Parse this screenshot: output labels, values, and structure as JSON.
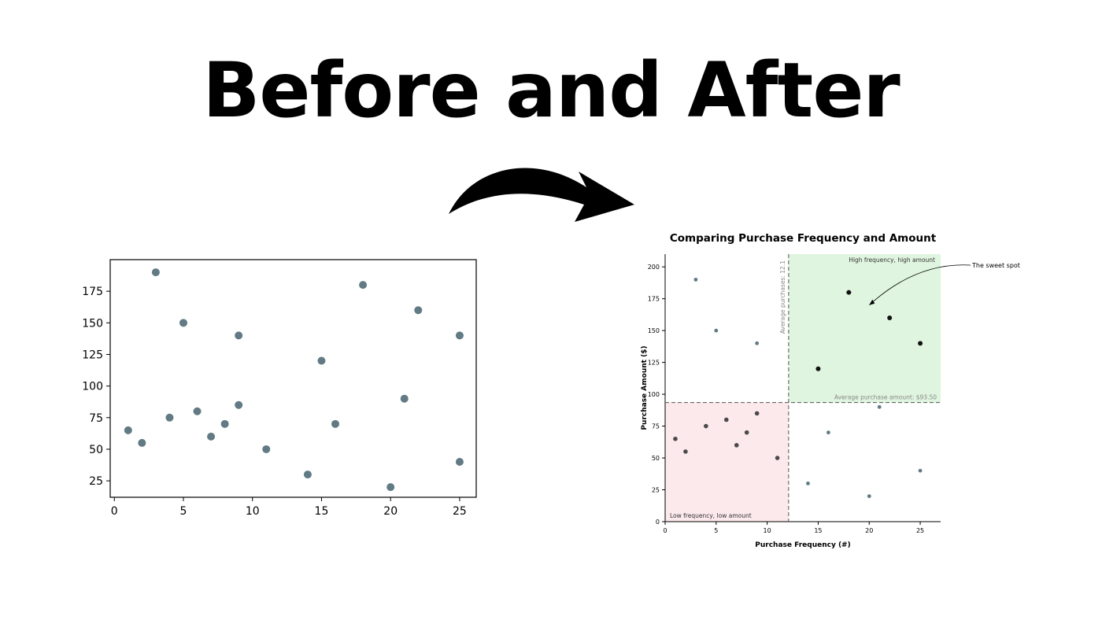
{
  "headline": "Before and After",
  "colors": {
    "point": "#617a84",
    "point_dark": "#111111",
    "point_mid": "#4a4a4a",
    "sweet_region": "#dff5df",
    "low_region": "#fce9ec",
    "avg_line": "#555555"
  },
  "chart_data": [
    {
      "type": "scatter",
      "title": "",
      "xlabel": "",
      "ylabel": "",
      "xlim": [
        -0.3,
        26.2
      ],
      "ylim": [
        12,
        200
      ],
      "xticks": [
        0,
        5,
        10,
        15,
        20,
        25
      ],
      "yticks": [
        25,
        50,
        75,
        100,
        125,
        150,
        175
      ],
      "grid": false,
      "series": [
        {
          "x": [
            1,
            2,
            3,
            4,
            5,
            6,
            7,
            8,
            9,
            9,
            11,
            14,
            15,
            16,
            18,
            20,
            21,
            22,
            25,
            25
          ],
          "y": [
            65,
            55,
            190,
            75,
            150,
            80,
            60,
            70,
            140,
            85,
            50,
            30,
            120,
            70,
            180,
            20,
            90,
            160,
            140,
            40
          ]
        }
      ]
    },
    {
      "type": "scatter",
      "title": "Comparing Purchase Frequency and Amount",
      "xlabel": "Purchase Frequency (#)",
      "ylabel": "Purchase Amount ($)",
      "xlim": [
        0,
        27
      ],
      "ylim": [
        0,
        210
      ],
      "xticks": [
        0,
        5,
        10,
        15,
        20,
        25
      ],
      "yticks": [
        0,
        25,
        50,
        75,
        100,
        125,
        150,
        175,
        200
      ],
      "grid": false,
      "avg_x": 12.1,
      "avg_y": 93.5,
      "avg_x_label": "Average purchases: 12.1",
      "avg_y_label": "Average purchase amount: $93.50",
      "quadrant_labels": {
        "high": "High frequency, high amount",
        "low": "Low frequency, low amount"
      },
      "annotation": {
        "text": "The sweet spot",
        "target_x": 20,
        "target_y": 170
      },
      "series": [
        {
          "group": "high",
          "x": [
            15,
            18,
            22,
            25
          ],
          "y": [
            120,
            180,
            160,
            140
          ]
        },
        {
          "group": "low",
          "x": [
            1,
            2,
            4,
            6,
            7,
            8,
            9,
            11
          ],
          "y": [
            65,
            55,
            75,
            80,
            60,
            70,
            85,
            50
          ]
        },
        {
          "group": "other",
          "x": [
            3,
            5,
            9,
            14,
            16,
            20,
            21,
            25
          ],
          "y": [
            190,
            150,
            140,
            30,
            70,
            20,
            90,
            40
          ]
        }
      ]
    }
  ]
}
